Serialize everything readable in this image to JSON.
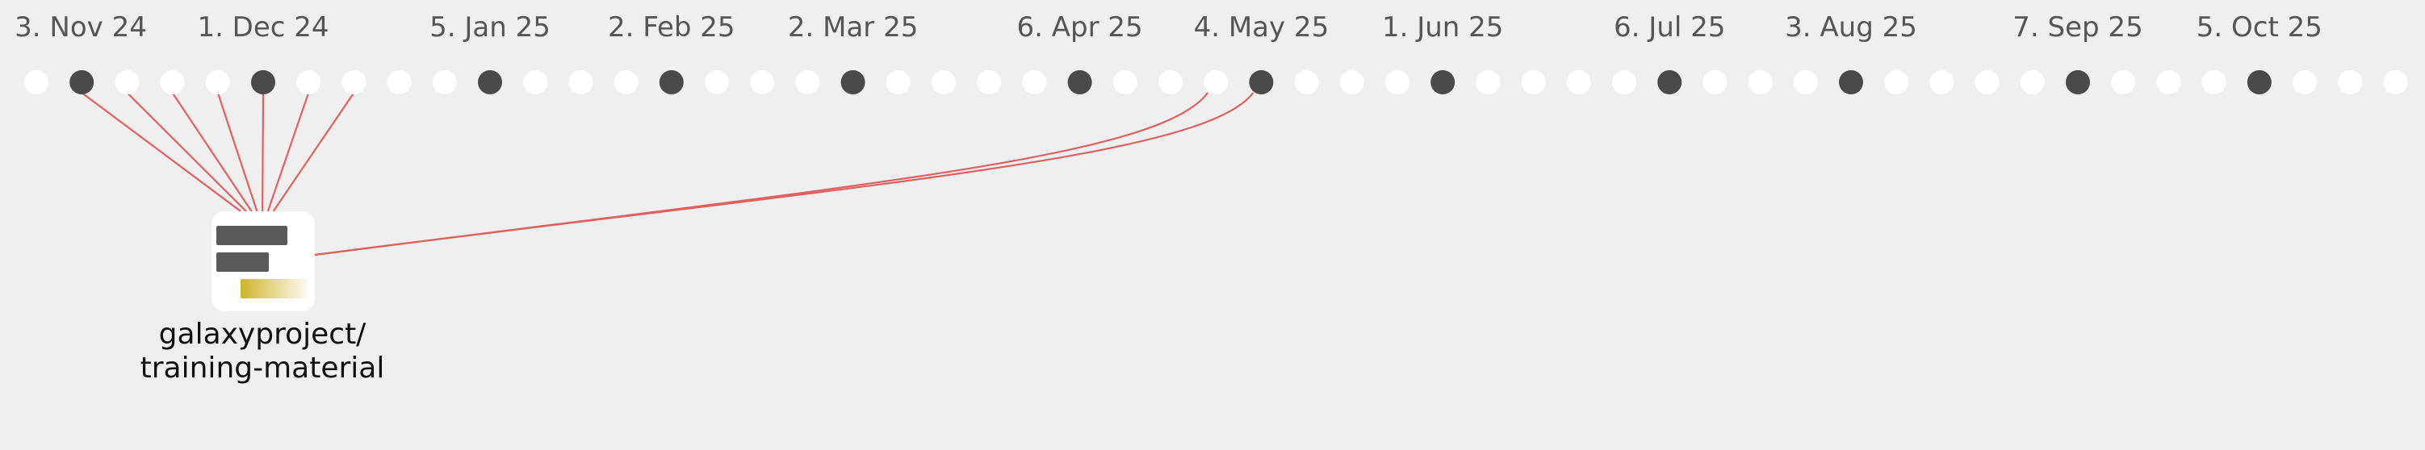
{
  "timeline": {
    "week_count": 53,
    "milestones": [
      {
        "label": "3. Nov 24",
        "week": 1
      },
      {
        "label": "1. Dec 24",
        "week": 5
      },
      {
        "label": "5. Jan 25",
        "week": 10
      },
      {
        "label": "2. Feb 25",
        "week": 14
      },
      {
        "label": "2. Mar 25",
        "week": 18
      },
      {
        "label": "6. Apr 25",
        "week": 23
      },
      {
        "label": "4. May 25",
        "week": 27
      },
      {
        "label": "1. Jun 25",
        "week": 31
      },
      {
        "label": "6. Jul 25",
        "week": 36
      },
      {
        "label": "3. Aug 25",
        "week": 40
      },
      {
        "label": "7. Sep 25",
        "week": 45
      },
      {
        "label": "5. Oct 25",
        "week": 49
      }
    ],
    "connected_weeks": [
      1,
      2,
      3,
      4,
      5,
      6,
      7,
      26,
      27
    ]
  },
  "repository": {
    "name_line1": "galaxyproject/",
    "name_line2": "training-material"
  },
  "colors": {
    "background": "#efefef",
    "inactive_dot": "#ffffff",
    "milestone_dot": "#4a4a4a",
    "link": "#e06060",
    "icon_bar": "#5a5a5a",
    "icon_accent": "#cdb52a"
  }
}
